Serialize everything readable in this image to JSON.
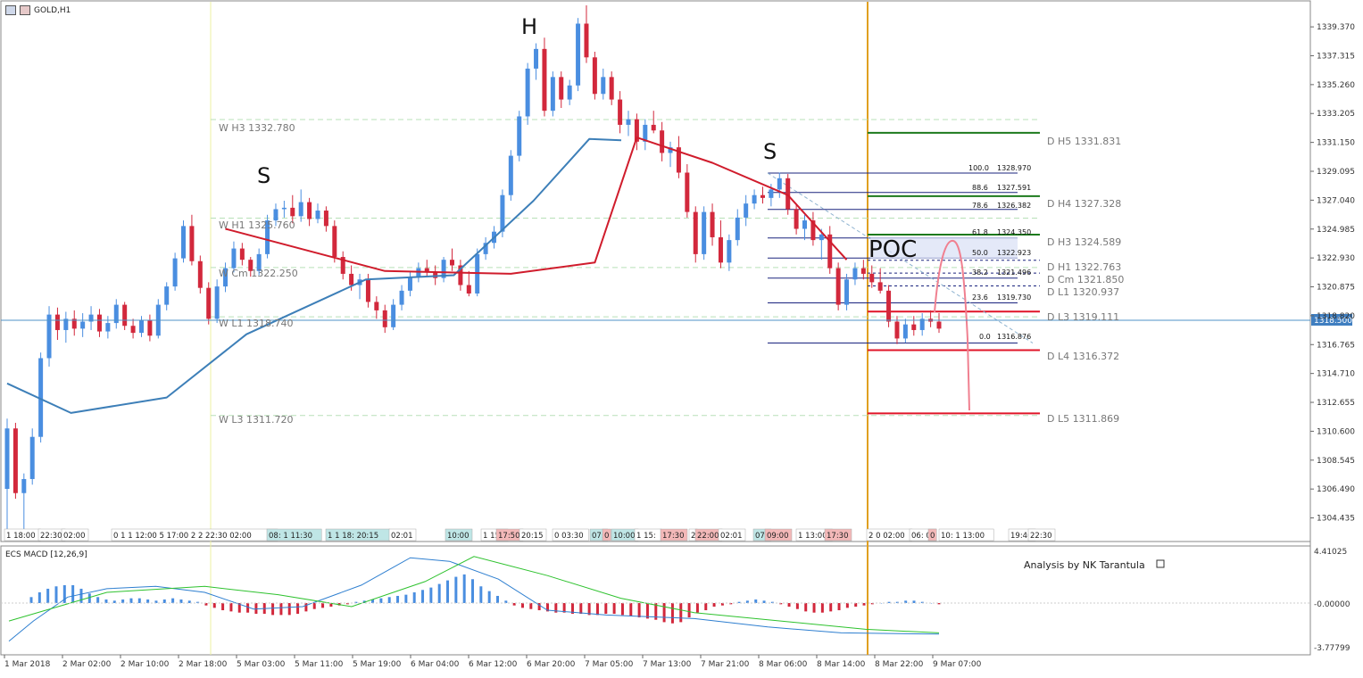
{
  "window": {
    "title": "GOLD,H1"
  },
  "colors": {
    "bull": "#4a8ee0",
    "bear": "#d2283c",
    "ema_slow": "#3d7fb8",
    "ema_fast": "#d01c2c",
    "pivot_green": "#1d7a1d",
    "pivot_red": "#e01428",
    "vline": "#e0a020"
  },
  "price_axis": {
    "ticks": [
      "1339.370",
      "1337.315",
      "1335.260",
      "1333.205",
      "1331.150",
      "1329.095",
      "1327.040",
      "1324.985",
      "1322.930",
      "1320.875",
      "1318.820",
      "1316.765",
      "1314.710",
      "1312.655",
      "1310.600",
      "1308.545",
      "1306.490",
      "1304.435"
    ],
    "current_price": "1318.500"
  },
  "time_axis": [
    "1 Mar 2018",
    "2 Mar 02:00",
    "2 Mar 10:00",
    "2 Mar 18:00",
    "5 Mar 03:00",
    "5 Mar 11:00",
    "5 Mar 19:00",
    "6 Mar 04:00",
    "6 Mar 12:00",
    "6 Mar 20:00",
    "7 Mar 05:00",
    "7 Mar 13:00",
    "7 Mar 21:00",
    "8 Mar 06:00",
    "8 Mar 14:00",
    "8 Mar 22:00",
    "9 Mar 07:00"
  ],
  "session_labels": [
    "1 18:00",
    "22:30",
    "02:00",
    "0 1 1 12:00 5 17:00 2 2 22:30 02:00",
    "08: 1 11:30",
    "1 1 18: 20:15",
    "02:01",
    "10:00",
    "1 15:",
    "17:50",
    "20:15",
    "0 03:30",
    "07:",
    "0",
    "10:00",
    "1 15:",
    "17:30",
    "2",
    "22:00",
    "02:01",
    "07:",
    "09:00",
    "1 13:00",
    "17:30",
    "2 0 02:00",
    "06: 0",
    "0",
    "10: 1 13:00",
    "19:40",
    "22:30"
  ],
  "weekly_pivots": [
    {
      "label": "W  H3 1332.780"
    },
    {
      "label": "W  H1 1325.760"
    },
    {
      "label": "W  Cm 1322.250"
    },
    {
      "label": "W  L1 1318.740"
    },
    {
      "label": "W  L3 1311.720"
    }
  ],
  "daily_pivots": [
    {
      "label": "D  H5 1331.831"
    },
    {
      "label": "D  H4 1327.328"
    },
    {
      "label": "D  H3 1324.589"
    },
    {
      "label": "D  H1 1322.763"
    },
    {
      "label": "D  Cm  1321.850"
    },
    {
      "label": "D  L1 1320.937"
    },
    {
      "label": "D  L3 1319.111"
    },
    {
      "label": "D  L4 1316.372"
    },
    {
      "label": "D  L5 1311.869"
    }
  ],
  "fibonacci": [
    {
      "level": "100.0",
      "price": "1328.970"
    },
    {
      "level": "88.6",
      "price": "1327.591"
    },
    {
      "level": "78.6",
      "price": "1326.382"
    },
    {
      "level": "61.8",
      "price": "1324.350"
    },
    {
      "level": "50.0",
      "price": "1322.923"
    },
    {
      "level": "38.2",
      "price": "1321.496"
    },
    {
      "level": "23.6",
      "price": "1319.730"
    },
    {
      "level": "0.0",
      "price": "1316.876"
    }
  ],
  "annotations": {
    "shoulder_left": "S",
    "head": "H",
    "shoulder_right": "S",
    "poc": "POC"
  },
  "macd": {
    "title": "ECS MACD [12,26,9]",
    "axis": [
      "4.41025",
      "-0.00000",
      "-3.77799"
    ],
    "credit": "Analysis by NK Tarantula"
  },
  "chart_data": {
    "type": "candlestick",
    "symbol": "GOLD",
    "timeframe": "H1",
    "ylim": [
      1303.2,
      1340.9
    ],
    "ohlc": [
      [
        1306.5,
        1311.5,
        1303.2,
        1310.8
      ],
      [
        1310.8,
        1311.2,
        1305.8,
        1306.2
      ],
      [
        1306.2,
        1307.6,
        1303.5,
        1307.2
      ],
      [
        1307.2,
        1310.8,
        1306.8,
        1310.2
      ],
      [
        1310.2,
        1316.2,
        1309.8,
        1315.8
      ],
      [
        1315.8,
        1319.5,
        1315.2,
        1318.9
      ],
      [
        1318.9,
        1319.4,
        1317.1,
        1317.8
      ],
      [
        1317.8,
        1319.1,
        1316.9,
        1318.6
      ],
      [
        1318.6,
        1319.2,
        1317.4,
        1317.9
      ],
      [
        1317.9,
        1319.0,
        1317.3,
        1318.4
      ],
      [
        1318.4,
        1319.5,
        1317.8,
        1318.9
      ],
      [
        1318.9,
        1319.3,
        1317.3,
        1317.7
      ],
      [
        1317.7,
        1318.8,
        1317.2,
        1318.3
      ],
      [
        1318.3,
        1320.0,
        1317.9,
        1319.6
      ],
      [
        1319.6,
        1319.8,
        1317.8,
        1318.1
      ],
      [
        1318.1,
        1318.6,
        1317.2,
        1317.6
      ],
      [
        1317.6,
        1318.8,
        1317.3,
        1318.5
      ],
      [
        1318.5,
        1318.9,
        1317.0,
        1317.4
      ],
      [
        1317.4,
        1320.0,
        1317.2,
        1319.6
      ],
      [
        1319.6,
        1321.2,
        1319.2,
        1320.9
      ],
      [
        1320.9,
        1323.3,
        1320.6,
        1322.9
      ],
      [
        1322.9,
        1325.6,
        1322.6,
        1325.2
      ],
      [
        1325.2,
        1326.0,
        1322.4,
        1322.7
      ],
      [
        1322.7,
        1323.1,
        1320.4,
        1320.8
      ],
      [
        1320.8,
        1321.2,
        1318.2,
        1318.6
      ],
      [
        1318.6,
        1321.4,
        1318.3,
        1320.9
      ],
      [
        1320.9,
        1322.6,
        1320.5,
        1322.2
      ],
      [
        1322.2,
        1324.1,
        1321.9,
        1323.6
      ],
      [
        1323.6,
        1324.0,
        1322.4,
        1322.8
      ],
      [
        1322.8,
        1323.0,
        1321.6,
        1322.0
      ],
      [
        1322.0,
        1323.6,
        1321.7,
        1323.2
      ],
      [
        1323.2,
        1326.0,
        1322.9,
        1325.6
      ],
      [
        1325.6,
        1326.8,
        1325.2,
        1326.4
      ],
      [
        1326.4,
        1327.0,
        1325.8,
        1326.5
      ],
      [
        1326.5,
        1327.4,
        1325.4,
        1325.9
      ],
      [
        1325.9,
        1327.8,
        1325.5,
        1326.9
      ],
      [
        1326.9,
        1327.2,
        1325.2,
        1325.7
      ],
      [
        1325.7,
        1326.8,
        1325.4,
        1326.3
      ],
      [
        1326.3,
        1326.6,
        1324.8,
        1325.2
      ],
      [
        1325.2,
        1325.6,
        1322.6,
        1323.0
      ],
      [
        1323.0,
        1323.4,
        1321.4,
        1321.8
      ],
      [
        1321.8,
        1322.4,
        1320.6,
        1321.0
      ],
      [
        1321.0,
        1321.8,
        1320.0,
        1321.4
      ],
      [
        1321.4,
        1321.8,
        1319.4,
        1319.8
      ],
      [
        1319.8,
        1320.2,
        1318.6,
        1319.2
      ],
      [
        1319.2,
        1319.6,
        1317.6,
        1318.0
      ],
      [
        1318.0,
        1320.0,
        1317.8,
        1319.6
      ],
      [
        1319.6,
        1321.0,
        1319.2,
        1320.6
      ],
      [
        1320.6,
        1322.0,
        1320.2,
        1321.6
      ],
      [
        1321.6,
        1322.6,
        1321.2,
        1322.2
      ],
      [
        1322.2,
        1322.8,
        1321.6,
        1321.9
      ],
      [
        1321.9,
        1322.4,
        1321.0,
        1321.5
      ],
      [
        1321.5,
        1323.0,
        1321.2,
        1322.8
      ],
      [
        1322.8,
        1323.6,
        1322.0,
        1322.4
      ],
      [
        1322.4,
        1322.8,
        1320.6,
        1321.0
      ],
      [
        1321.0,
        1322.0,
        1320.2,
        1320.4
      ],
      [
        1320.4,
        1323.6,
        1320.2,
        1323.2
      ],
      [
        1323.2,
        1324.4,
        1322.8,
        1324.0
      ],
      [
        1324.0,
        1325.2,
        1323.6,
        1324.8
      ],
      [
        1324.8,
        1327.8,
        1324.4,
        1327.4
      ],
      [
        1327.4,
        1330.6,
        1327.0,
        1330.2
      ],
      [
        1330.2,
        1333.4,
        1329.8,
        1333.0
      ],
      [
        1333.0,
        1336.8,
        1332.4,
        1336.4
      ],
      [
        1336.4,
        1338.2,
        1335.6,
        1337.8
      ],
      [
        1337.8,
        1338.6,
        1333.0,
        1333.4
      ],
      [
        1333.4,
        1336.2,
        1333.0,
        1335.8
      ],
      [
        1335.8,
        1336.2,
        1333.6,
        1334.2
      ],
      [
        1334.2,
        1335.6,
        1333.8,
        1335.2
      ],
      [
        1335.2,
        1340.0,
        1334.8,
        1339.6
      ],
      [
        1339.6,
        1340.9,
        1336.8,
        1337.2
      ],
      [
        1337.2,
        1337.6,
        1334.2,
        1334.6
      ],
      [
        1334.6,
        1336.4,
        1334.2,
        1335.8
      ],
      [
        1335.8,
        1336.2,
        1333.8,
        1334.2
      ],
      [
        1334.2,
        1334.8,
        1331.8,
        1332.4
      ],
      [
        1332.4,
        1333.4,
        1331.6,
        1332.8
      ],
      [
        1332.8,
        1333.2,
        1330.6,
        1331.2
      ],
      [
        1331.2,
        1332.8,
        1330.6,
        1332.4
      ],
      [
        1332.4,
        1333.4,
        1331.8,
        1332.0
      ],
      [
        1332.0,
        1332.6,
        1329.8,
        1330.4
      ],
      [
        1330.4,
        1331.2,
        1329.4,
        1330.8
      ],
      [
        1330.8,
        1331.6,
        1328.6,
        1329.0
      ],
      [
        1329.0,
        1329.6,
        1325.8,
        1326.2
      ],
      [
        1326.2,
        1326.6,
        1322.6,
        1323.2
      ],
      [
        1323.2,
        1326.6,
        1322.8,
        1326.2
      ],
      [
        1326.2,
        1326.8,
        1323.8,
        1324.4
      ],
      [
        1324.4,
        1325.6,
        1322.2,
        1322.6
      ],
      [
        1322.6,
        1324.6,
        1322.0,
        1324.2
      ],
      [
        1324.2,
        1326.4,
        1323.8,
        1325.8
      ],
      [
        1325.8,
        1327.4,
        1325.2,
        1326.8
      ],
      [
        1326.8,
        1327.8,
        1326.4,
        1327.4
      ],
      [
        1327.4,
        1328.0,
        1326.8,
        1327.2
      ],
      [
        1327.2,
        1328.2,
        1326.6,
        1327.8
      ],
      [
        1327.8,
        1329.0,
        1327.2,
        1328.6
      ],
      [
        1328.6,
        1328.9,
        1326.0,
        1326.4
      ],
      [
        1326.4,
        1326.8,
        1324.6,
        1325.0
      ],
      [
        1325.0,
        1326.0,
        1324.2,
        1325.6
      ],
      [
        1325.6,
        1326.2,
        1323.8,
        1324.2
      ],
      [
        1324.2,
        1325.0,
        1322.8,
        1324.6
      ],
      [
        1324.6,
        1325.2,
        1321.8,
        1322.2
      ],
      [
        1322.2,
        1322.6,
        1319.2,
        1319.6
      ],
      [
        1319.6,
        1321.8,
        1319.2,
        1321.4
      ],
      [
        1321.4,
        1322.6,
        1321.0,
        1322.2
      ],
      [
        1322.2,
        1322.8,
        1321.4,
        1321.8
      ],
      [
        1321.8,
        1322.4,
        1320.8,
        1321.2
      ],
      [
        1321.2,
        1322.2,
        1320.4,
        1320.6
      ],
      [
        1320.6,
        1321.0,
        1318.0,
        1318.4
      ],
      [
        1318.4,
        1318.8,
        1316.8,
        1317.2
      ],
      [
        1317.2,
        1318.6,
        1316.9,
        1318.2
      ],
      [
        1318.2,
        1318.8,
        1317.4,
        1317.8
      ],
      [
        1317.8,
        1319.0,
        1317.4,
        1318.6
      ],
      [
        1318.6,
        1319.2,
        1318.0,
        1318.4
      ],
      [
        1318.4,
        1319.0,
        1317.6,
        1317.9
      ]
    ],
    "ema_fast": [
      [
        26,
        1325.0
      ],
      [
        45,
        1322.0
      ],
      [
        60,
        1321.8
      ],
      [
        70,
        1322.6
      ],
      [
        75,
        1331.5
      ],
      [
        84,
        1329.7
      ],
      [
        93,
        1327.4
      ],
      [
        100,
        1322.8
      ]
    ],
    "ema_slow": [
      [
        0,
        1314.0
      ],
      [
        8,
        1311.9
      ],
      [
        20,
        1313.0
      ],
      [
        30,
        1317.5
      ],
      [
        45,
        1321.4
      ],
      [
        56,
        1321.7
      ],
      [
        66,
        1327.0
      ],
      [
        73,
        1331.4
      ],
      [
        77,
        1331.3
      ]
    ],
    "macd_hist": [
      0.5,
      0.9,
      1.2,
      1.4,
      1.5,
      1.5,
      1.2,
      0.8,
      0.5,
      0.3,
      0.2,
      0.3,
      0.4,
      0.4,
      0.3,
      0.2,
      0.3,
      0.4,
      0.3,
      0.2,
      0.1,
      -0.2,
      -0.4,
      -0.6,
      -0.7,
      -0.8,
      -0.8,
      -0.9,
      -0.9,
      -1.0,
      -1.0,
      -1.0,
      -0.9,
      -0.7,
      -0.5,
      -0.4,
      -0.3,
      -0.2,
      -0.1,
      0.1,
      0.2,
      0.3,
      0.4,
      0.5,
      0.6,
      0.7,
      0.9,
      1.1,
      1.3,
      1.6,
      1.9,
      2.2,
      2.4,
      2.0,
      1.4,
      1.0,
      0.6,
      0.2,
      -0.2,
      -0.4,
      -0.5,
      -0.6,
      -0.7,
      -0.8,
      -0.8,
      -0.9,
      -0.9,
      -1.0,
      -1.0,
      -0.9,
      -0.9,
      -1.0,
      -1.1,
      -1.2,
      -1.3,
      -1.4,
      -1.6,
      -1.7,
      -1.6,
      -1.2,
      -0.8,
      -0.6,
      -0.3,
      -0.2,
      -0.1,
      0.1,
      0.2,
      0.3,
      0.2,
      0.1,
      -0.1,
      -0.3,
      -0.5,
      -0.7,
      -0.8,
      -0.8,
      -0.7,
      -0.6,
      -0.4,
      -0.3,
      -0.2,
      -0.1,
      0.0,
      0.1,
      0.1,
      0.2,
      0.2,
      0.1,
      0.0,
      -0.1
    ],
    "macd_line": [
      [
        0,
        -3.2
      ],
      [
        5,
        -1.5
      ],
      [
        12,
        0.5
      ],
      [
        20,
        1.2
      ],
      [
        30,
        1.4
      ],
      [
        40,
        0.9
      ],
      [
        50,
        -0.5
      ],
      [
        60,
        -0.3
      ],
      [
        72,
        1.5
      ],
      [
        82,
        3.8
      ],
      [
        90,
        3.5
      ],
      [
        100,
        2.0
      ],
      [
        110,
        -0.6
      ],
      [
        122,
        -1.0
      ],
      [
        140,
        -1.3
      ],
      [
        155,
        -2.0
      ],
      [
        170,
        -2.5
      ],
      [
        190,
        -2.6
      ]
    ],
    "signal_line": [
      [
        0,
        -1.5
      ],
      [
        20,
        0.9
      ],
      [
        40,
        1.4
      ],
      [
        55,
        0.7
      ],
      [
        70,
        -0.3
      ],
      [
        85,
        1.8
      ],
      [
        95,
        3.9
      ],
      [
        110,
        2.3
      ],
      [
        125,
        0.4
      ],
      [
        140,
        -0.8
      ],
      [
        160,
        -1.6
      ],
      [
        175,
        -2.2
      ],
      [
        190,
        -2.5
      ]
    ]
  }
}
